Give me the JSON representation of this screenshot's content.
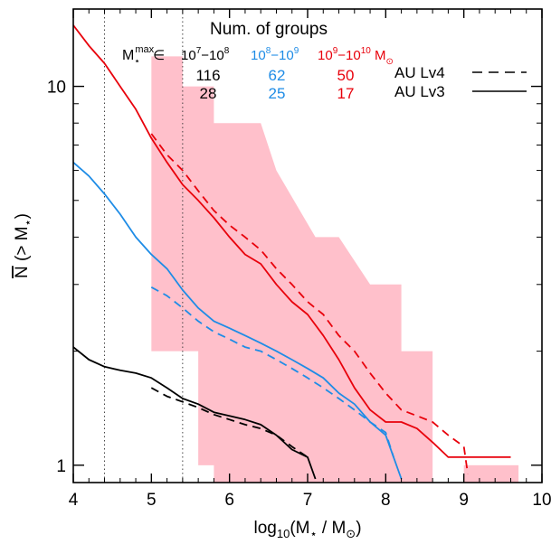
{
  "chart_data": {
    "type": "line",
    "xlabel": "log10(M* / M⊙)",
    "ylabel": "N (> M*)",
    "xlim": [
      4,
      10
    ],
    "ylim": [
      0.9,
      16
    ],
    "yscale": "log",
    "x_ticks": [
      4,
      5,
      6,
      7,
      8,
      9,
      10
    ],
    "y_ticks": [
      1,
      10
    ],
    "vertical_lines": [
      4.4,
      5.4
    ],
    "legend": {
      "title": "Num. of groups",
      "bin_prefix": "M*max ∈",
      "bins": [
        {
          "label": "10^7−10^8",
          "color": "#000000",
          "lv4_count": "116",
          "lv3_count": "28"
        },
        {
          "label": "10^8−10^9",
          "color": "#1e8ce6",
          "lv4_count": "62",
          "lv3_count": "25"
        },
        {
          "label": "10^9−10^10 M⊙",
          "color": "#e8000b",
          "lv4_count": "50",
          "lv3_count": "17"
        }
      ],
      "line_styles": [
        {
          "label": "AU Lv4",
          "style": "dashed"
        },
        {
          "label": "AU Lv3",
          "style": "solid"
        }
      ]
    },
    "band": {
      "color": "#ffc0cb",
      "upper": [
        [
          5.0,
          12.0
        ],
        [
          5.4,
          12.0
        ],
        [
          5.4,
          10.0
        ],
        [
          5.8,
          10.0
        ],
        [
          5.8,
          8.0
        ],
        [
          6.4,
          8.0
        ],
        [
          6.6,
          6.0
        ],
        [
          7.1,
          4.0
        ],
        [
          7.4,
          4.0
        ],
        [
          7.8,
          3.0
        ],
        [
          8.2,
          3.0
        ],
        [
          8.2,
          2.0
        ],
        [
          8.6,
          2.0
        ],
        [
          8.6,
          0.9
        ]
      ],
      "lower": [
        [
          5.0,
          2.0
        ],
        [
          5.6,
          2.0
        ],
        [
          5.6,
          1.0
        ],
        [
          5.8,
          1.0
        ],
        [
          5.8,
          0.9
        ]
      ],
      "tail": [
        [
          9.0,
          1.0
        ],
        [
          9.7,
          1.0
        ]
      ]
    },
    "series": [
      {
        "color": "#e8000b",
        "style": "solid",
        "points": [
          [
            4.0,
            14.5
          ],
          [
            4.2,
            12.8
          ],
          [
            4.4,
            11.5
          ],
          [
            4.6,
            10.0
          ],
          [
            4.8,
            8.7
          ],
          [
            5.0,
            7.3
          ],
          [
            5.2,
            6.3
          ],
          [
            5.4,
            5.5
          ],
          [
            5.6,
            5.0
          ],
          [
            5.8,
            4.5
          ],
          [
            6.0,
            4.0
          ],
          [
            6.2,
            3.6
          ],
          [
            6.4,
            3.4
          ],
          [
            6.6,
            3.0
          ],
          [
            6.8,
            2.7
          ],
          [
            7.0,
            2.5
          ],
          [
            7.2,
            2.2
          ],
          [
            7.4,
            1.9
          ],
          [
            7.6,
            1.6
          ],
          [
            7.8,
            1.4
          ],
          [
            8.0,
            1.3
          ],
          [
            8.2,
            1.3
          ],
          [
            8.4,
            1.25
          ],
          [
            8.6,
            1.15
          ],
          [
            8.8,
            1.05
          ],
          [
            9.0,
            1.05
          ],
          [
            9.2,
            1.05
          ],
          [
            9.4,
            1.05
          ],
          [
            9.6,
            1.05
          ]
        ]
      },
      {
        "color": "#e8000b",
        "style": "dashed",
        "points": [
          [
            5.0,
            7.5
          ],
          [
            5.2,
            6.6
          ],
          [
            5.4,
            6.0
          ],
          [
            5.6,
            5.3
          ],
          [
            5.8,
            4.7
          ],
          [
            6.0,
            4.3
          ],
          [
            6.2,
            4.0
          ],
          [
            6.4,
            3.7
          ],
          [
            6.6,
            3.3
          ],
          [
            6.8,
            3.0
          ],
          [
            7.0,
            2.7
          ],
          [
            7.2,
            2.5
          ],
          [
            7.4,
            2.2
          ],
          [
            7.6,
            2.0
          ],
          [
            7.8,
            1.75
          ],
          [
            8.0,
            1.55
          ],
          [
            8.2,
            1.4
          ],
          [
            8.4,
            1.35
          ],
          [
            8.6,
            1.3
          ],
          [
            8.8,
            1.2
          ],
          [
            9.0,
            1.12
          ],
          [
            9.05,
            0.95
          ]
        ]
      },
      {
        "color": "#1e8ce6",
        "style": "solid",
        "points": [
          [
            4.0,
            6.3
          ],
          [
            4.2,
            5.8
          ],
          [
            4.4,
            5.2
          ],
          [
            4.6,
            4.6
          ],
          [
            4.8,
            4.0
          ],
          [
            5.0,
            3.6
          ],
          [
            5.2,
            3.3
          ],
          [
            5.4,
            2.9
          ],
          [
            5.6,
            2.6
          ],
          [
            5.8,
            2.4
          ],
          [
            6.0,
            2.3
          ],
          [
            6.2,
            2.2
          ],
          [
            6.4,
            2.1
          ],
          [
            6.6,
            2.0
          ],
          [
            6.8,
            1.9
          ],
          [
            7.0,
            1.8
          ],
          [
            7.2,
            1.7
          ],
          [
            7.4,
            1.55
          ],
          [
            7.6,
            1.45
          ],
          [
            7.8,
            1.3
          ],
          [
            8.0,
            1.2
          ],
          [
            8.1,
            1.05
          ],
          [
            8.2,
            0.92
          ]
        ]
      },
      {
        "color": "#1e8ce6",
        "style": "dashed",
        "points": [
          [
            5.0,
            2.95
          ],
          [
            5.2,
            2.8
          ],
          [
            5.4,
            2.6
          ],
          [
            5.6,
            2.4
          ],
          [
            5.8,
            2.25
          ],
          [
            6.0,
            2.15
          ],
          [
            6.2,
            2.05
          ],
          [
            6.4,
            2.0
          ],
          [
            6.6,
            1.9
          ],
          [
            6.8,
            1.8
          ],
          [
            7.0,
            1.7
          ],
          [
            7.2,
            1.6
          ],
          [
            7.4,
            1.5
          ],
          [
            7.6,
            1.4
          ],
          [
            7.8,
            1.3
          ],
          [
            8.0,
            1.22
          ],
          [
            8.1,
            1.05
          ]
        ]
      },
      {
        "color": "#000000",
        "style": "solid",
        "points": [
          [
            4.0,
            2.05
          ],
          [
            4.2,
            1.9
          ],
          [
            4.4,
            1.82
          ],
          [
            4.6,
            1.78
          ],
          [
            4.8,
            1.75
          ],
          [
            5.0,
            1.7
          ],
          [
            5.2,
            1.6
          ],
          [
            5.4,
            1.5
          ],
          [
            5.6,
            1.45
          ],
          [
            5.8,
            1.38
          ],
          [
            6.0,
            1.35
          ],
          [
            6.2,
            1.32
          ],
          [
            6.4,
            1.28
          ],
          [
            6.6,
            1.2
          ],
          [
            6.8,
            1.1
          ],
          [
            7.0,
            1.05
          ],
          [
            7.1,
            0.92
          ]
        ]
      },
      {
        "color": "#000000",
        "style": "dashed",
        "points": [
          [
            5.0,
            1.6
          ],
          [
            5.2,
            1.52
          ],
          [
            5.4,
            1.47
          ],
          [
            5.6,
            1.42
          ],
          [
            5.8,
            1.36
          ],
          [
            6.0,
            1.32
          ],
          [
            6.2,
            1.28
          ],
          [
            6.4,
            1.25
          ],
          [
            6.6,
            1.2
          ],
          [
            6.8,
            1.12
          ],
          [
            7.0,
            1.05
          ]
        ]
      }
    ]
  }
}
